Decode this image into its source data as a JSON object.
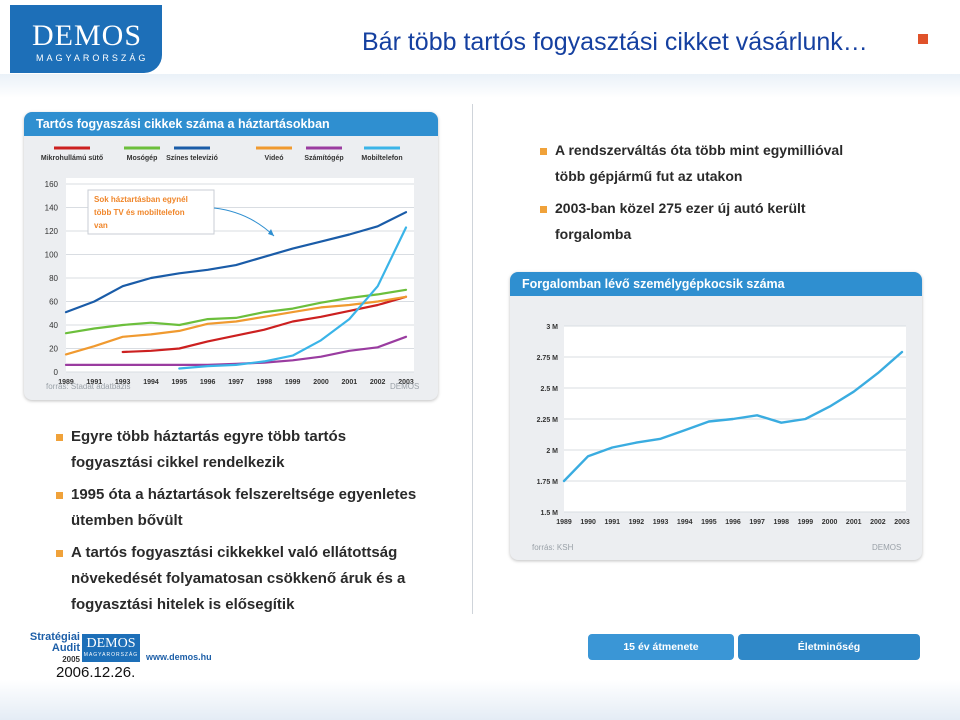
{
  "header": {
    "logo_main": "DEMOS",
    "logo_sub": "MAGYARORSZÁG",
    "title": "Bár több tartós fogyasztási cikket vásárlunk…"
  },
  "left_panel": {
    "title": "Tartós fogyaszási cikkek száma a háztartásokban",
    "annotation": [
      "Sok háztartásban egynél",
      "több TV és mobiltelefon",
      "van"
    ],
    "source": "forrás: Stadat adatbázis",
    "brand": "DEMOS"
  },
  "right_panel": {
    "title": "Forgalomban lévő személygépkocsik száma",
    "source": "forrás: KSH",
    "brand": "DEMOS"
  },
  "right_bullets": [
    [
      "A rendszerváltás óta több mint egymillióval",
      "több gépjármű fut az utakon"
    ],
    [
      "2003-ban közel 275 ezer új autó került",
      "forgalomba"
    ]
  ],
  "left_bullets": [
    [
      "Egyre több háztartás egyre több tartós",
      "fogyasztási cikkel rendelkezik"
    ],
    [
      "1995 óta a háztartások felszereltsége egyenletes",
      "ütemben bővült"
    ],
    [
      "A tartós fogyasztási cikkekkel való ellátottság",
      "növekedését folyamatosan csökkenő áruk és a",
      "fogyasztási hitelek is elősegítik"
    ]
  ],
  "footer": {
    "audit_line1": "Stratégiai",
    "audit_line2": "Audit",
    "audit_year": "2005",
    "logo_main": "DEMOS",
    "logo_sub": "MAGYARORSZÁG",
    "url": "www.demos.hu",
    "date": "2006.12.26.",
    "nav": [
      "15 év átmenete",
      "Életminőség"
    ]
  },
  "colors": {
    "accent": "#2f8fd0",
    "title": "#1540a0",
    "bullet": "#f0a23a"
  },
  "chart_data": [
    {
      "type": "line",
      "title": "Tartós fogyaszási cikkek száma a háztartásokban",
      "x": [
        "1989",
        "1991",
        "1993",
        "1994",
        "1995",
        "1996",
        "1997",
        "1998",
        "1999",
        "2000",
        "2001",
        "2002",
        "2003"
      ],
      "ylim": [
        0,
        160
      ],
      "yticks": [
        0,
        20,
        40,
        60,
        80,
        100,
        120,
        140,
        160
      ],
      "grid": true,
      "legend_position": "top",
      "series": [
        {
          "name": "Mikrohullámú sütő",
          "color": "#cc2020",
          "values": [
            null,
            null,
            17,
            18,
            20,
            26,
            31,
            36,
            43,
            47,
            52,
            57,
            64
          ]
        },
        {
          "name": "Mosógép",
          "color": "#6cbf3c",
          "values": [
            33,
            37,
            40,
            42,
            40,
            45,
            46,
            51,
            54,
            59,
            63,
            66,
            70
          ]
        },
        {
          "name": "Színes televízió",
          "color": "#1a5ca8",
          "values": [
            51,
            60,
            73,
            80,
            84,
            87,
            91,
            98,
            105,
            111,
            117,
            124,
            136
          ]
        },
        {
          "name": "Videó",
          "color": "#f09a30",
          "values": [
            15,
            22,
            30,
            32,
            35,
            41,
            43,
            47,
            51,
            55,
            57,
            60,
            64
          ]
        },
        {
          "name": "Számítógép",
          "color": "#9a3ca0",
          "values": [
            6,
            6,
            6,
            6,
            6,
            6,
            7,
            8,
            10,
            13,
            18,
            21,
            30
          ]
        },
        {
          "name": "Mobiltelefon",
          "color": "#3ab4e8",
          "values": [
            null,
            null,
            null,
            null,
            3,
            5,
            6,
            9,
            14,
            27,
            45,
            73,
            123
          ]
        }
      ]
    },
    {
      "type": "line",
      "title": "Forgalomban lévő személygépkocsik száma",
      "x": [
        "1989",
        "1990",
        "1991",
        "1992",
        "1993",
        "1994",
        "1995",
        "1996",
        "1997",
        "1998",
        "1999",
        "2000",
        "2001",
        "2002",
        "2003"
      ],
      "ylim": [
        1500000,
        3000000
      ],
      "ytick_labels": [
        "1.5 M",
        "1.75 M",
        "2 M",
        "2.25 M",
        "2.5 M",
        "2.75 M",
        "3 M"
      ],
      "grid": true,
      "series": [
        {
          "name": "",
          "color": "#3aace0",
          "values": [
            1750000,
            1950000,
            2020000,
            2060000,
            2090000,
            2160000,
            2230000,
            2250000,
            2280000,
            2220000,
            2250000,
            2350000,
            2470000,
            2620000,
            2790000
          ]
        }
      ]
    }
  ]
}
